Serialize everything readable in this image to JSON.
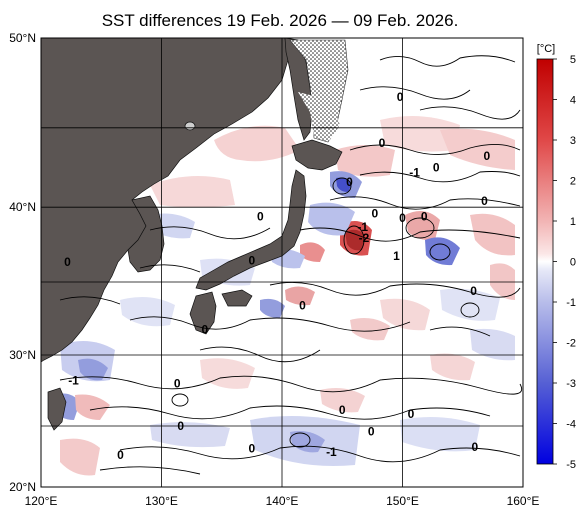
{
  "title": "SST differences 19 Feb. 2026 — 09 Feb. 2026.",
  "colorbar": {
    "unit": "[°C]",
    "ticks": [
      "5",
      "4",
      "3",
      "2",
      "1",
      "0",
      "-1",
      "-2",
      "-3",
      "-4",
      "-5"
    ],
    "range": [
      -5,
      5
    ]
  },
  "axes": {
    "lat_ticks": [
      "50°N",
      "40°N",
      "30°N",
      "20°N"
    ],
    "lon_ticks": [
      "120°E",
      "130°E",
      "140°E",
      "150°E",
      "160°E"
    ]
  },
  "map": {
    "extent": {
      "lon": [
        120,
        160
      ],
      "lat": [
        20,
        50
      ]
    },
    "land_color": "#5b5553",
    "contour_labels": [
      {
        "text": "0",
        "lon": 145.6,
        "lat": 41.4
      },
      {
        "text": "0",
        "lon": 148.3,
        "lat": 43.8
      },
      {
        "text": "0",
        "lon": 149.8,
        "lat": 46.5
      },
      {
        "text": "0",
        "lon": 152.8,
        "lat": 42.3
      },
      {
        "text": "0",
        "lon": 157.0,
        "lat": 43.0
      },
      {
        "text": "-1",
        "lon": 151.0,
        "lat": 42.0
      },
      {
        "text": "0",
        "lon": 156.8,
        "lat": 40.2
      },
      {
        "text": "0",
        "lon": 150.0,
        "lat": 39.1
      },
      {
        "text": "0",
        "lon": 151.8,
        "lat": 39.2
      },
      {
        "text": "0",
        "lon": 147.7,
        "lat": 39.4
      },
      {
        "text": "-1",
        "lon": 146.7,
        "lat": 38.5
      },
      {
        "text": "-2",
        "lon": 146.8,
        "lat": 37.8
      },
      {
        "text": "1",
        "lon": 149.5,
        "lat": 36.6
      },
      {
        "text": "0",
        "lon": 138.2,
        "lat": 39.2
      },
      {
        "text": "0",
        "lon": 122.2,
        "lat": 36.2
      },
      {
        "text": "0",
        "lon": 137.5,
        "lat": 36.3
      },
      {
        "text": "0",
        "lon": 155.9,
        "lat": 34.2
      },
      {
        "text": "0",
        "lon": 141.7,
        "lat": 33.2
      },
      {
        "text": "0",
        "lon": 133.6,
        "lat": 31.5
      },
      {
        "text": "-1",
        "lon": 122.7,
        "lat": 27.8
      },
      {
        "text": "0",
        "lon": 131.3,
        "lat": 27.6
      },
      {
        "text": "0",
        "lon": 145.0,
        "lat": 25.6
      },
      {
        "text": "0",
        "lon": 131.6,
        "lat": 24.4
      },
      {
        "text": "0",
        "lon": 150.7,
        "lat": 25.3
      },
      {
        "text": "0",
        "lon": 147.4,
        "lat": 24.0
      },
      {
        "text": "-1",
        "lon": 144.1,
        "lat": 22.4
      },
      {
        "text": "0",
        "lon": 137.5,
        "lat": 22.7
      },
      {
        "text": "0",
        "lon": 126.6,
        "lat": 22.2
      },
      {
        "text": "0",
        "lon": 156.0,
        "lat": 22.8
      }
    ]
  },
  "colors": {
    "ocean_neutral": "#ffffff",
    "warm_light": "#f5d0d0",
    "warm_mid": "#e88a8a",
    "warm_strong": "#cc2a2a",
    "cool_light": "#d6daf2",
    "cool_mid": "#8e98dc",
    "cool_strong": "#2a34c8",
    "land": "#5b5553",
    "grid": "#000000"
  }
}
